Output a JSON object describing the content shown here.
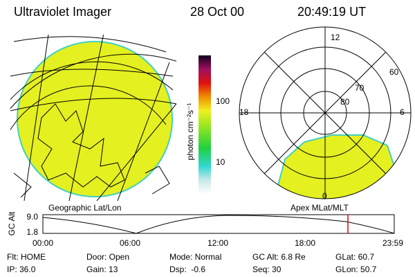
{
  "header": {
    "title": "Ultraviolet Imager",
    "date": "28 Oct 00",
    "time": "20:49:19 UT"
  },
  "colorbar": {
    "label": "photon cm⁻²s⁻¹",
    "ticks": [
      "100",
      "10"
    ]
  },
  "polar_plot": {
    "mlt_labels": [
      "12",
      "6",
      "18",
      "0"
    ],
    "mlat_labels": [
      "60",
      "70",
      "80"
    ]
  },
  "left_caption": "Geographic Lat/Lon",
  "right_caption": "Apex MLat/MLT",
  "altitude_plot": {
    "axis_label": "GC Alt",
    "yticks": [
      "9.0",
      "1.8"
    ],
    "xticks": [
      "00:00",
      "06:00",
      "12:00",
      "18:00",
      "23:59"
    ]
  },
  "status": {
    "rows": [
      [
        "Flt: HOME",
        "Door: Open",
        "Mode: Normal",
        "GC Alt: 6.8 Re",
        "GLat: 60.7"
      ],
      [
        "IP: 36.0",
        "Gain: 13",
        "Dsp:  -0.6",
        "Seq: 30",
        "GLon: 50.7"
      ]
    ]
  }
}
